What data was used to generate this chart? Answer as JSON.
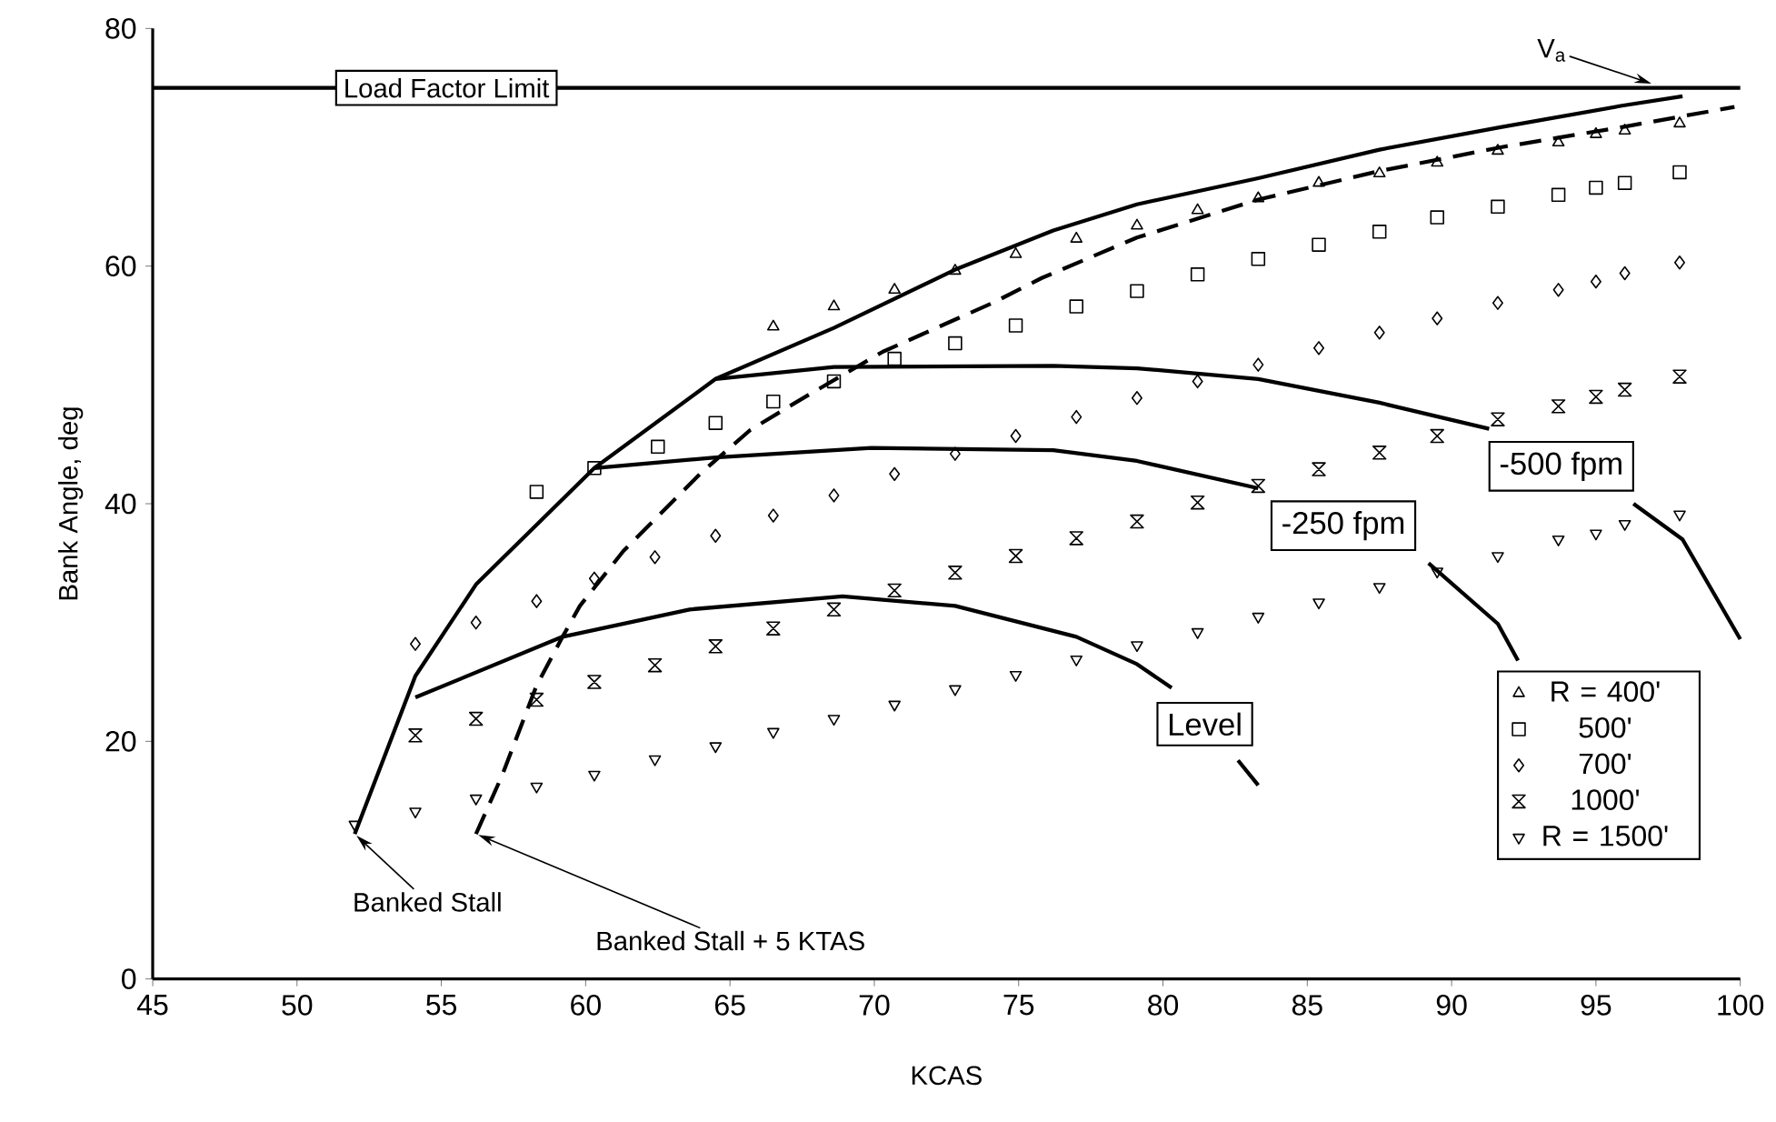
{
  "chart_data": {
    "type": "scatter",
    "xlabel": "KCAS",
    "ylabel": "Bank Angle, deg",
    "xlim": [
      45,
      100
    ],
    "ylim": [
      0,
      80
    ],
    "xticks": [
      45,
      50,
      55,
      60,
      65,
      70,
      75,
      80,
      85,
      90,
      95,
      100
    ],
    "yticks": [
      0,
      20,
      40,
      60,
      80
    ],
    "legend": "bottom right",
    "series": [
      {
        "name": "R = 400'",
        "marker": "triangle",
        "color": "#000000",
        "x": [
          66.5,
          68.6,
          70.7,
          72.8,
          74.9,
          77.0,
          79.1,
          81.2,
          83.3,
          85.4,
          87.5,
          89.5,
          91.6,
          93.7,
          95.0,
          96.0,
          97.9
        ],
        "values": [
          54.9,
          56.6,
          58.0,
          59.6,
          61.0,
          62.3,
          63.4,
          64.7,
          65.7,
          67.0,
          67.8,
          68.7,
          69.7,
          70.4,
          71.1,
          71.4,
          72.0
        ]
      },
      {
        "name": "500'",
        "marker": "square",
        "color": "#000000",
        "x": [
          58.3,
          60.3,
          62.5,
          64.5,
          66.5,
          68.6,
          70.7,
          72.8,
          74.9,
          77.0,
          79.1,
          81.2,
          83.3,
          85.4,
          87.5,
          89.5,
          91.6,
          93.7,
          95.0,
          96.0,
          97.9
        ],
        "values": [
          41.0,
          43.0,
          44.8,
          46.8,
          48.6,
          50.3,
          52.2,
          53.5,
          55.0,
          56.6,
          57.9,
          59.3,
          60.6,
          61.8,
          62.9,
          64.1,
          65.0,
          66.0,
          66.6,
          67.0,
          67.9
        ]
      },
      {
        "name": "700'",
        "marker": "diamond",
        "color": "#000000",
        "x": [
          54.1,
          56.2,
          58.3,
          60.3,
          62.4,
          64.5,
          66.5,
          68.6,
          70.7,
          72.8,
          74.9,
          77.0,
          79.1,
          81.2,
          83.3,
          85.4,
          87.5,
          89.5,
          91.6,
          93.7,
          95.0,
          96.0,
          97.9
        ],
        "values": [
          28.2,
          30.0,
          31.8,
          33.7,
          35.5,
          37.3,
          39.0,
          40.7,
          42.5,
          44.2,
          45.7,
          47.3,
          48.9,
          50.3,
          51.7,
          53.1,
          54.4,
          55.6,
          56.9,
          58.0,
          58.7,
          59.4,
          60.3
        ]
      },
      {
        "name": "1000'",
        "color": "#000000",
        "x": [
          54.1,
          56.2,
          58.3,
          60.3,
          62.4,
          64.5,
          66.5,
          68.6,
          70.7,
          72.8,
          74.9,
          77.0,
          79.1,
          81.2,
          83.3,
          85.4,
          87.5,
          89.5,
          91.6,
          93.7,
          95.0,
          96.0,
          97.9
        ],
        "values": [
          20.5,
          21.9,
          23.5,
          25.0,
          26.4,
          28.0,
          29.5,
          31.1,
          32.7,
          34.2,
          35.6,
          37.1,
          38.5,
          40.1,
          41.5,
          42.9,
          44.3,
          45.7,
          47.1,
          48.2,
          49.0,
          49.6,
          50.7
        ]
      },
      {
        "name": "R = 1500'",
        "marker": "triangle_down",
        "color": "#000000",
        "x": [
          52.0,
          54.1,
          56.2,
          58.3,
          60.3,
          62.4,
          64.5,
          66.5,
          68.6,
          70.7,
          72.8,
          74.9,
          77.0,
          79.1,
          81.2,
          83.3,
          85.4,
          87.5,
          89.5,
          91.6,
          93.7,
          95.0,
          96.0,
          97.9
        ],
        "values": [
          13.0,
          14.1,
          15.2,
          16.2,
          17.2,
          18.5,
          19.6,
          20.8,
          21.9,
          23.1,
          24.4,
          25.6,
          26.9,
          28.1,
          29.2,
          30.5,
          31.7,
          33.0,
          34.3,
          35.6,
          37.0,
          37.5,
          38.3,
          39.1
        ]
      },
      {
        "type": "line",
        "marker": "none",
        "line_style": "solid",
        "color": "#000000",
        "x": [
          52.0,
          54.1,
          56.2,
          60.3,
          64.5,
          68.6,
          72.8,
          76.2,
          79.1,
          83.3,
          87.5,
          91.7,
          95.9,
          98.0
        ],
        "values": [
          12.2,
          25.5,
          33.2,
          43.0,
          50.5,
          54.8,
          59.7,
          63.0,
          65.2,
          67.4,
          69.8,
          71.7,
          73.5,
          74.3
        ]
      },
      {
        "type": "line",
        "marker": "none",
        "line_style": "dashed",
        "color": "#000000",
        "x": [
          56.2,
          57.1,
          58.3,
          59.2,
          59.8,
          61.3,
          64.0,
          65.7,
          67.4,
          70.3,
          74.1,
          75.8,
          79.1,
          83.3,
          87.5,
          91.7,
          95.9,
          99.8
        ],
        "values": [
          12.2,
          17.1,
          24.7,
          28.8,
          31.4,
          36.0,
          42.6,
          46.2,
          48.7,
          52.8,
          56.9,
          59.0,
          62.4,
          65.6,
          68.0,
          70.0,
          71.7,
          73.4
        ]
      },
      {
        "name": "-500 fpm",
        "type": "line",
        "marker": "none",
        "line_style": "solid",
        "color": "#000000",
        "x": [
          64.5,
          68.6,
          76.2,
          79.1,
          83.3,
          87.5,
          91.3,
          93.8,
          96.3,
          98.0,
          100.0
        ],
        "values": [
          50.5,
          51.5,
          51.6,
          51.4,
          50.5,
          48.5,
          46.3,
          null,
          40.0,
          37.0,
          28.6
        ]
      },
      {
        "name": "-250 fpm",
        "type": "line",
        "marker": "none",
        "line_style": "solid",
        "color": "#000000",
        "x": [
          60.3,
          64.5,
          69.9,
          76.2,
          79.1,
          83.3,
          86.2,
          89.2,
          91.6,
          92.3
        ],
        "values": [
          43.0,
          43.9,
          44.7,
          44.5,
          43.6,
          41.3,
          null,
          35.0,
          29.9,
          26.8
        ]
      },
      {
        "name": "Level",
        "type": "line",
        "marker": "none",
        "line_style": "solid",
        "color": "#000000",
        "x": [
          54.1,
          59.2,
          63.6,
          68.9,
          72.8,
          76.2,
          77.0,
          79.1,
          80.3,
          81.4,
          82.6,
          83.3
        ],
        "values": [
          23.7,
          28.8,
          31.1,
          32.2,
          31.4,
          29.3,
          28.8,
          26.5,
          24.5,
          null,
          18.4,
          16.3
        ]
      }
    ],
    "ref_lines": [
      {
        "axis": "y",
        "value": 75,
        "label": "Load Factor Limit",
        "color": "#000000"
      }
    ],
    "annotations": [
      {
        "text": "V$_{a}$",
        "x": 97.0,
        "y": 75.3
      },
      {
        "text": "Banked Stall",
        "x": 52.0,
        "y": 12.2
      },
      {
        "text": "Banked Stall + 5 KTAS",
        "x": 56.2,
        "y": 12.2
      }
    ]
  }
}
